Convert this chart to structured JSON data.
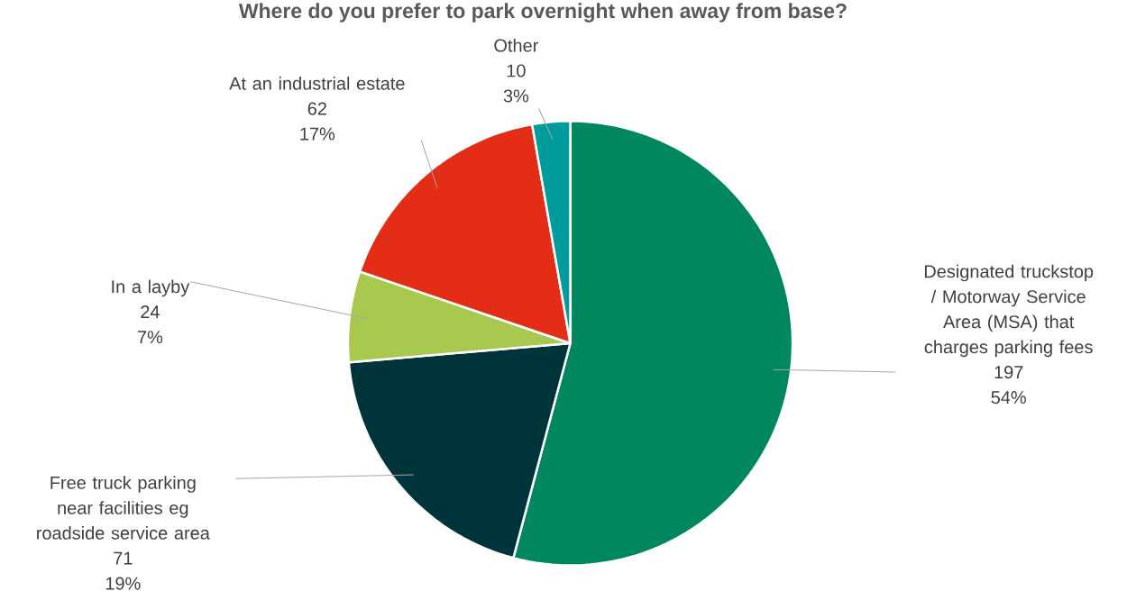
{
  "chart_data": {
    "type": "pie",
    "title": "Where do you prefer to park overnight when away from base?",
    "categories": [
      "Designated truckstop / Motorway Service Area (MSA) that charges parking fees",
      "Free truck parking near facilities eg roadside service area",
      "In a layby",
      "At an industrial estate",
      "Other"
    ],
    "values": [
      197,
      71,
      24,
      62,
      10
    ],
    "colors": [
      "#00875f",
      "#00343b",
      "#a9c94e",
      "#e42d16",
      "#009b9b"
    ],
    "value_labels": [
      "197",
      "71",
      "24",
      "62",
      "10"
    ],
    "annotations": [
      "54%",
      "19%",
      "7%",
      "17%",
      "3%"
    ]
  }
}
